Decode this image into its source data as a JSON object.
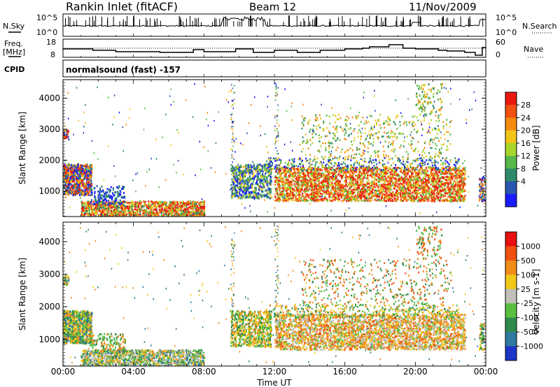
{
  "header": {
    "station": "Rankin Inlet (fitACF)",
    "beam": "Beam 12",
    "date": "11/Nov/2009"
  },
  "panels": {
    "nsky": {
      "label": "N.Sky",
      "ticks": [
        "10^5",
        "10^0"
      ],
      "right_label": "N.Search",
      "right_ticks": [
        "10^5",
        "10^0"
      ]
    },
    "freq": {
      "label_line1": "Freq.",
      "label_line2": "[MHz]",
      "ticks": [
        "18",
        "8"
      ],
      "right_label": "Nave",
      "right_ticks": [
        "60",
        "0"
      ]
    },
    "cpid": {
      "label": "CPID",
      "text": "normalsound (fast) -157"
    }
  },
  "colors": {
    "power": [
      "#1a1aff",
      "#2a55b0",
      "#2e8a6a",
      "#58b84a",
      "#a8d52a",
      "#f2c41a",
      "#f58a10",
      "#f05010",
      "#ea1a10"
    ],
    "velocity": [
      "#1e35c8",
      "#2e7aa0",
      "#2e8a4a",
      "#58c040",
      "#c0c0b8",
      "#f0c818",
      "#f08c18",
      "#f05010",
      "#e81010"
    ]
  },
  "chart_data": [
    {
      "type": "heatmap",
      "title": "Power",
      "ylabel": "Slant Range [km]",
      "ylim": [
        180,
        4600
      ],
      "yticks": [
        "1000",
        "2000",
        "3000",
        "4000"
      ],
      "xlim": [
        0,
        24
      ],
      "xticks": [
        "00:00",
        "04:00",
        "08:00",
        "12:00",
        "16:00",
        "20:00",
        "00:00"
      ],
      "colorbar": {
        "label": "Power [dB]",
        "ticks": [
          "28",
          "24",
          "20",
          "16",
          "12",
          "8",
          "4"
        ]
      }
    },
    {
      "type": "heatmap",
      "title": "Velocity",
      "ylabel": "Slant Range [km]",
      "xlabel": "Time UT",
      "ylim": [
        180,
        4600
      ],
      "yticks": [
        "1000",
        "2000",
        "3000",
        "4000"
      ],
      "xlim": [
        0,
        24
      ],
      "xticks": [
        "00:00",
        "04:00",
        "08:00",
        "12:00",
        "16:00",
        "20:00",
        "00:00"
      ],
      "colorbar": {
        "label": "Velocity [m s-1]",
        "ticks": [
          "1000",
          "500",
          "100",
          "25",
          "-25",
          "-100",
          "-500",
          "-1000"
        ]
      }
    }
  ]
}
